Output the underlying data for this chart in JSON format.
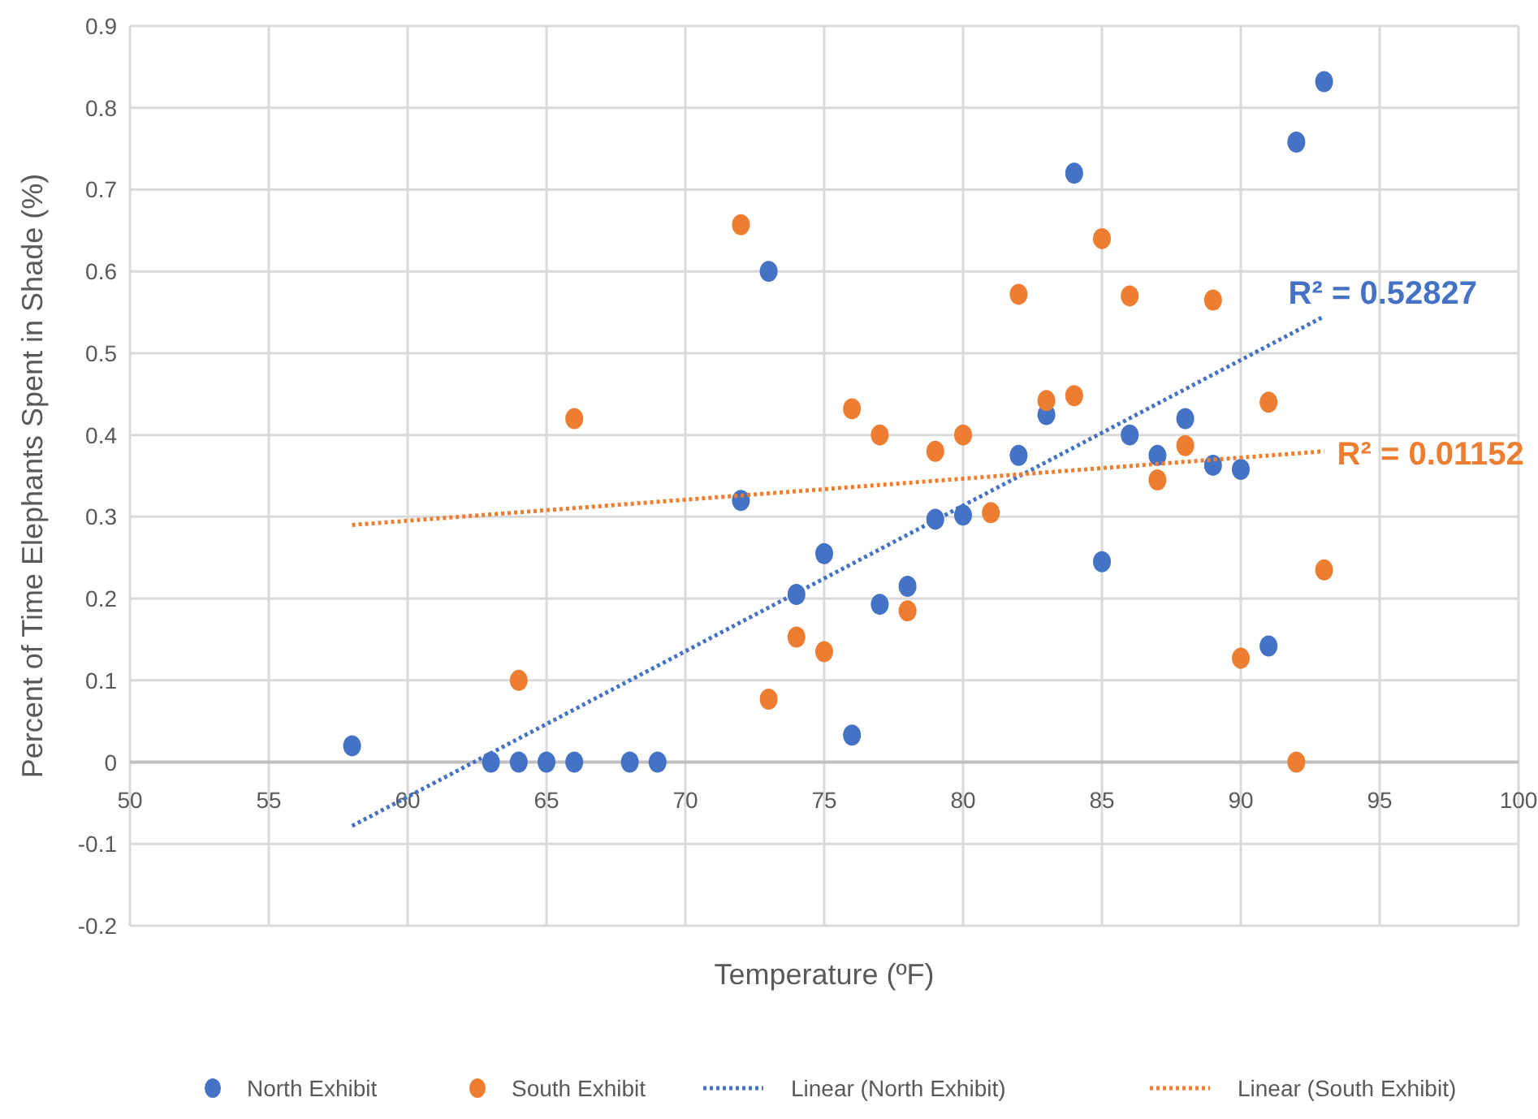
{
  "chart_data": {
    "type": "scatter",
    "xlabel": "Temperature (ºF)",
    "ylabel": "Percent of Time Elephants Spent in Shade (%)",
    "xlim": [
      50,
      100
    ],
    "xticks": [
      50,
      55,
      60,
      65,
      70,
      75,
      80,
      85,
      90,
      95,
      100
    ],
    "ylim": [
      -0.2,
      0.9
    ],
    "yticks": [
      -0.2,
      -0.1,
      0,
      0.1,
      0.2,
      0.3,
      0.4,
      0.5,
      0.6,
      0.7,
      0.8,
      0.9
    ],
    "grid": true,
    "legend": "bottom",
    "marker": "circle",
    "series": [
      {
        "name": "North Exhibit",
        "color": "#4472c4",
        "x": [
          58,
          63,
          64,
          65,
          66,
          68,
          69,
          72,
          73,
          74,
          75,
          76,
          77,
          78,
          79,
          80,
          82,
          83,
          84,
          85,
          86,
          87,
          88,
          89,
          90,
          91,
          92,
          93
        ],
        "values": [
          0.02,
          0,
          0,
          0,
          0,
          0,
          0,
          0.32,
          0.6,
          0.205,
          0.255,
          0.033,
          0.193,
          0.215,
          0.297,
          0.302,
          0.375,
          0.425,
          0.72,
          0.245,
          0.4,
          0.375,
          0.42,
          0.363,
          0.358,
          0.142,
          0.758,
          0.832
        ]
      },
      {
        "name": "South Exhibit",
        "color": "#ed7d31",
        "x": [
          64,
          66,
          72,
          73,
          74,
          75,
          76,
          77,
          78,
          79,
          80,
          81,
          82,
          83,
          84,
          85,
          86,
          87,
          88,
          89,
          90,
          91,
          92,
          93
        ],
        "values": [
          0.1,
          0.42,
          0.657,
          0.077,
          0.153,
          0.135,
          0.432,
          0.4,
          0.185,
          0.38,
          0.4,
          0.305,
          0.572,
          0.442,
          0.448,
          0.64,
          0.57,
          0.345,
          0.387,
          0.565,
          0.127,
          0.44,
          0,
          0.235
        ]
      },
      {
        "name": "Linear (North Exhibit)",
        "type": "line",
        "color": "#4472c4",
        "marker": "none",
        "line_style": "dotted",
        "x": [
          58,
          93
        ],
        "values": [
          -0.078,
          0.545
        ]
      },
      {
        "name": "Linear (South Exhibit)",
        "type": "line",
        "color": "#ed7d31",
        "marker": "none",
        "line_style": "dotted",
        "x": [
          58,
          93
        ],
        "values": [
          0.29,
          0.38
        ]
      }
    ],
    "annotations": [
      {
        "text": "R² = 0.52827",
        "x": 93,
        "y": 0.545
      },
      {
        "text": "R² = 0.01152",
        "x": 93,
        "y": 0.38
      }
    ]
  }
}
